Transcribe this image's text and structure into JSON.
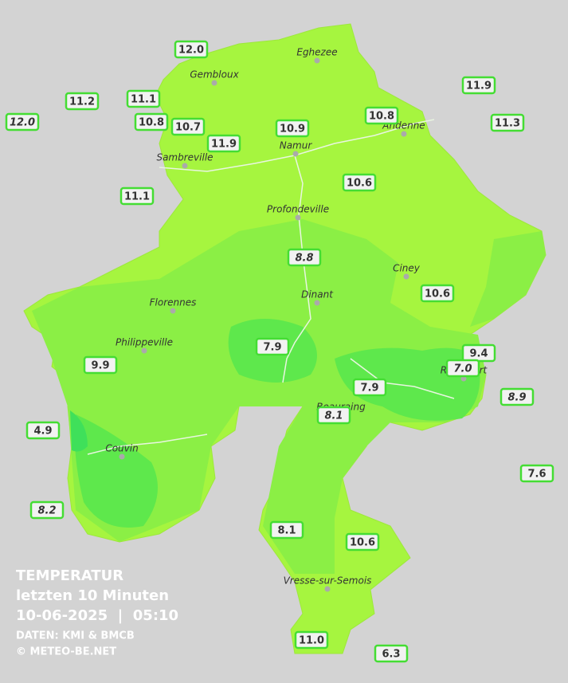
{
  "title": {
    "heading": "TEMPERATUR",
    "period": "letzten 10 Minuten",
    "timestamp": "10-06-2025  |  05:10",
    "source": "DATEN: KMI & BMCB",
    "copyright": "© METEO-BE.NET"
  },
  "cities": [
    "Eghezee",
    "Gembloux",
    "Andenne",
    "Namur",
    "Sambreville",
    "Profondeville",
    "Ciney",
    "Dinant",
    "Florennes",
    "Philippeville",
    "Rochefort",
    "Beauraing",
    "Couvin",
    "Vresse-sur-Semois"
  ],
  "stations": [
    {
      "value": "12.0"
    },
    {
      "value": "11.2"
    },
    {
      "value": "11.1"
    },
    {
      "value": "12.0"
    },
    {
      "value": "10.8"
    },
    {
      "value": "10.7"
    },
    {
      "value": "11.9"
    },
    {
      "value": "10.9"
    },
    {
      "value": "10.8"
    },
    {
      "value": "11.9"
    },
    {
      "value": "11.3"
    },
    {
      "value": "11.1"
    },
    {
      "value": "10.6"
    },
    {
      "value": "8.8"
    },
    {
      "value": "10.6"
    },
    {
      "value": "7.9"
    },
    {
      "value": "9.9"
    },
    {
      "value": "9.4"
    },
    {
      "value": "7.0"
    },
    {
      "value": "7.9"
    },
    {
      "value": "8.1"
    },
    {
      "value": "8.9"
    },
    {
      "value": "4.9"
    },
    {
      "value": "7.6"
    },
    {
      "value": "8.2"
    },
    {
      "value": "8.1"
    },
    {
      "value": "10.6"
    },
    {
      "value": "11.0"
    },
    {
      "value": "6.3"
    }
  ]
}
